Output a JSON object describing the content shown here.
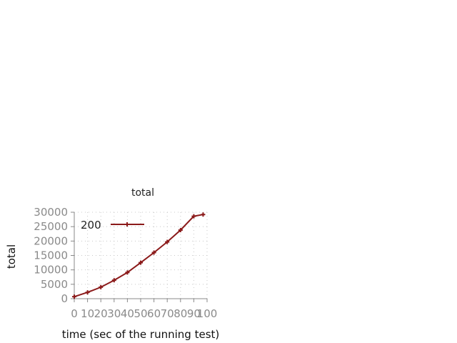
{
  "chart_data": {
    "type": "line",
    "title": "total",
    "xlabel": "time (sec of the running test)",
    "ylabel": "total",
    "xlim": [
      0,
      100
    ],
    "ylim": [
      0,
      30000
    ],
    "x_ticks": [
      "0",
      "10",
      "20",
      "30",
      "40",
      "50",
      "60",
      "70",
      "80",
      "90",
      "100"
    ],
    "y_ticks": [
      "0",
      "5000",
      "10000",
      "15000",
      "20000",
      "25000",
      "30000"
    ],
    "grid": true,
    "legend_position": "top-left",
    "series": [
      {
        "name": "200",
        "color": "#8b1a1a",
        "x": [
          0,
          10,
          20,
          30,
          40,
          50,
          60,
          70,
          80,
          90,
          97
        ],
        "y": [
          700,
          2200,
          4000,
          6400,
          9100,
          12500,
          16000,
          19700,
          23800,
          28600,
          29200
        ]
      }
    ]
  }
}
